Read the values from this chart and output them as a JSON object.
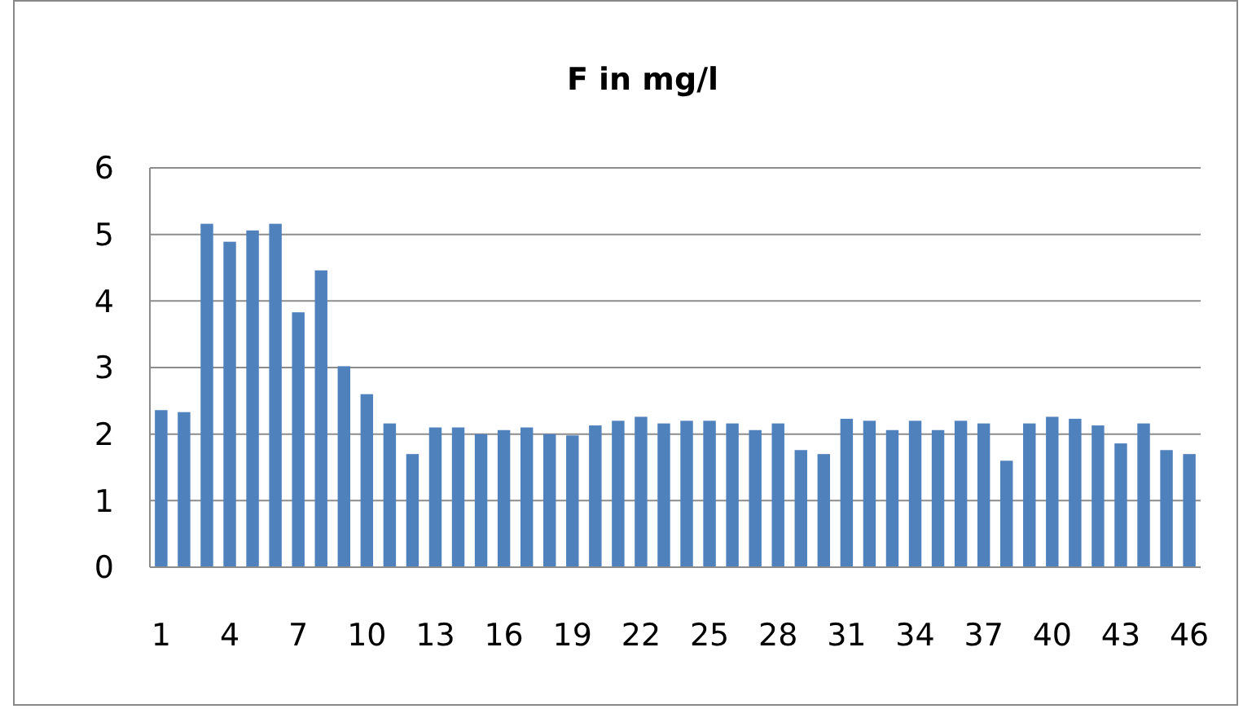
{
  "chart_data": {
    "type": "bar",
    "title": "F in mg/l",
    "categories": [
      "1",
      null,
      null,
      "4",
      null,
      null,
      "7",
      null,
      null,
      "10",
      null,
      null,
      "13",
      null,
      null,
      "16",
      null,
      null,
      "19",
      null,
      null,
      "22",
      null,
      null,
      "25",
      null,
      null,
      "28",
      null,
      null,
      "31",
      null,
      null,
      "34",
      null,
      null,
      "37",
      null,
      null,
      "40",
      null,
      null,
      "43",
      null,
      null,
      "46"
    ],
    "values": [
      2.36,
      2.33,
      5.16,
      4.89,
      5.06,
      5.16,
      3.83,
      4.46,
      3.02,
      2.6,
      2.16,
      1.7,
      2.1,
      2.1,
      2.0,
      2.06,
      2.1,
      2.0,
      1.98,
      2.13,
      2.2,
      2.26,
      2.16,
      2.2,
      2.2,
      2.16,
      2.06,
      2.16,
      1.76,
      1.7,
      2.23,
      2.2,
      2.06,
      2.2,
      2.06,
      2.2,
      2.16,
      1.6,
      2.16,
      2.26,
      2.23,
      2.13,
      1.86,
      2.16,
      1.76,
      1.7
    ],
    "color": "#4f81bd",
    "ylim": [
      0,
      6
    ],
    "yticks": [
      0,
      1,
      2,
      3,
      4,
      5,
      6
    ],
    "grid": "y"
  }
}
